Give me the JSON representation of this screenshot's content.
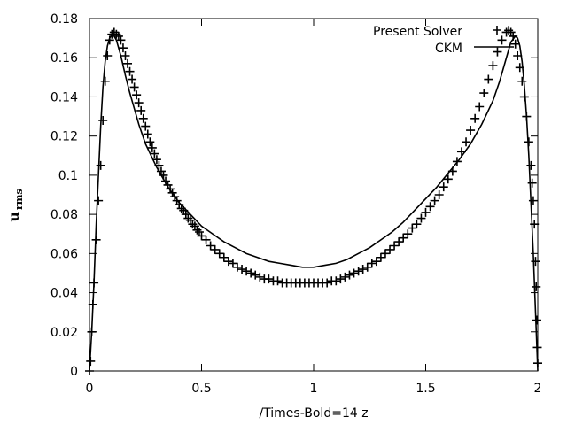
{
  "chart_data": {
    "type": "line",
    "title": "",
    "xlabel": "/Times-Bold=14 z",
    "ylabel": "u",
    "ylabel_sub": "rms",
    "xlim": [
      0,
      2
    ],
    "ylim": [
      0,
      0.18
    ],
    "x_ticks": [
      "0",
      "0.5",
      "1",
      "1.5",
      "2"
    ],
    "y_ticks": [
      "0",
      "0.02",
      "0.04",
      "0.06",
      "0.08",
      "0.1",
      "0.12",
      "0.14",
      "0.16",
      "0.18"
    ],
    "legend_position": "top-right",
    "grid": false,
    "series": [
      {
        "name": "Present Solver",
        "style": "markers-plus",
        "color": "#000000",
        "points": [
          [
            0.0,
            0.0
          ],
          [
            0.005,
            0.005
          ],
          [
            0.01,
            0.02
          ],
          [
            0.015,
            0.034
          ],
          [
            0.02,
            0.045
          ],
          [
            0.03,
            0.067
          ],
          [
            0.04,
            0.087
          ],
          [
            0.05,
            0.105
          ],
          [
            0.06,
            0.128
          ],
          [
            0.07,
            0.148
          ],
          [
            0.08,
            0.161
          ],
          [
            0.09,
            0.169
          ],
          [
            0.1,
            0.172
          ],
          [
            0.11,
            0.173
          ],
          [
            0.12,
            0.172
          ],
          [
            0.13,
            0.171
          ],
          [
            0.14,
            0.169
          ],
          [
            0.15,
            0.165
          ],
          [
            0.16,
            0.161
          ],
          [
            0.17,
            0.157
          ],
          [
            0.18,
            0.153
          ],
          [
            0.19,
            0.149
          ],
          [
            0.2,
            0.145
          ],
          [
            0.21,
            0.141
          ],
          [
            0.22,
            0.137
          ],
          [
            0.23,
            0.133
          ],
          [
            0.24,
            0.129
          ],
          [
            0.25,
            0.125
          ],
          [
            0.26,
            0.121
          ],
          [
            0.27,
            0.117
          ],
          [
            0.28,
            0.114
          ],
          [
            0.29,
            0.111
          ],
          [
            0.3,
            0.108
          ],
          [
            0.31,
            0.105
          ],
          [
            0.32,
            0.102
          ],
          [
            0.33,
            0.1
          ],
          [
            0.34,
            0.097
          ],
          [
            0.35,
            0.095
          ],
          [
            0.36,
            0.093
          ],
          [
            0.37,
            0.091
          ],
          [
            0.38,
            0.089
          ],
          [
            0.39,
            0.087
          ],
          [
            0.4,
            0.085
          ],
          [
            0.41,
            0.083
          ],
          [
            0.42,
            0.082
          ],
          [
            0.43,
            0.08
          ],
          [
            0.44,
            0.078
          ],
          [
            0.45,
            0.077
          ],
          [
            0.46,
            0.075
          ],
          [
            0.47,
            0.074
          ],
          [
            0.48,
            0.072
          ],
          [
            0.49,
            0.071
          ],
          [
            0.5,
            0.069
          ],
          [
            0.52,
            0.067
          ],
          [
            0.54,
            0.064
          ],
          [
            0.56,
            0.062
          ],
          [
            0.58,
            0.06
          ],
          [
            0.6,
            0.058
          ],
          [
            0.62,
            0.056
          ],
          [
            0.64,
            0.055
          ],
          [
            0.66,
            0.053
          ],
          [
            0.68,
            0.052
          ],
          [
            0.7,
            0.051
          ],
          [
            0.72,
            0.05
          ],
          [
            0.74,
            0.049
          ],
          [
            0.76,
            0.048
          ],
          [
            0.78,
            0.047
          ],
          [
            0.8,
            0.047
          ],
          [
            0.82,
            0.046
          ],
          [
            0.84,
            0.046
          ],
          [
            0.86,
            0.045
          ],
          [
            0.88,
            0.045
          ],
          [
            0.9,
            0.045
          ],
          [
            0.92,
            0.045
          ],
          [
            0.94,
            0.045
          ],
          [
            0.96,
            0.045
          ],
          [
            0.98,
            0.045
          ],
          [
            1.0,
            0.045
          ],
          [
            1.02,
            0.045
          ],
          [
            1.04,
            0.045
          ],
          [
            1.06,
            0.045
          ],
          [
            1.08,
            0.046
          ],
          [
            1.1,
            0.046
          ],
          [
            1.12,
            0.047
          ],
          [
            1.14,
            0.048
          ],
          [
            1.16,
            0.049
          ],
          [
            1.18,
            0.05
          ],
          [
            1.2,
            0.051
          ],
          [
            1.22,
            0.052
          ],
          [
            1.24,
            0.053
          ],
          [
            1.26,
            0.055
          ],
          [
            1.28,
            0.056
          ],
          [
            1.3,
            0.058
          ],
          [
            1.32,
            0.06
          ],
          [
            1.34,
            0.062
          ],
          [
            1.36,
            0.064
          ],
          [
            1.38,
            0.066
          ],
          [
            1.4,
            0.068
          ],
          [
            1.42,
            0.07
          ],
          [
            1.44,
            0.073
          ],
          [
            1.46,
            0.075
          ],
          [
            1.48,
            0.078
          ],
          [
            1.5,
            0.081
          ],
          [
            1.52,
            0.084
          ],
          [
            1.54,
            0.087
          ],
          [
            1.56,
            0.09
          ],
          [
            1.58,
            0.094
          ],
          [
            1.6,
            0.098
          ],
          [
            1.62,
            0.102
          ],
          [
            1.64,
            0.107
          ],
          [
            1.66,
            0.112
          ],
          [
            1.68,
            0.117
          ],
          [
            1.7,
            0.123
          ],
          [
            1.72,
            0.129
          ],
          [
            1.74,
            0.135
          ],
          [
            1.76,
            0.142
          ],
          [
            1.78,
            0.149
          ],
          [
            1.8,
            0.156
          ],
          [
            1.82,
            0.163
          ],
          [
            1.84,
            0.169
          ],
          [
            1.86,
            0.173
          ],
          [
            1.87,
            0.174
          ],
          [
            1.88,
            0.173
          ],
          [
            1.89,
            0.171
          ],
          [
            1.9,
            0.167
          ],
          [
            1.91,
            0.161
          ],
          [
            1.92,
            0.155
          ],
          [
            1.93,
            0.148
          ],
          [
            1.94,
            0.14
          ],
          [
            1.95,
            0.13
          ],
          [
            1.96,
            0.117
          ],
          [
            1.97,
            0.105
          ],
          [
            1.975,
            0.096
          ],
          [
            1.98,
            0.087
          ],
          [
            1.985,
            0.075
          ],
          [
            1.99,
            0.056
          ],
          [
            1.993,
            0.043
          ],
          [
            1.996,
            0.026
          ],
          [
            1.998,
            0.012
          ],
          [
            2.0,
            0.004
          ]
        ]
      },
      {
        "name": "CKM",
        "style": "line",
        "color": "#000000",
        "points": [
          [
            0.0,
            0.0
          ],
          [
            0.01,
            0.02
          ],
          [
            0.02,
            0.045
          ],
          [
            0.03,
            0.075
          ],
          [
            0.04,
            0.1
          ],
          [
            0.05,
            0.125
          ],
          [
            0.06,
            0.145
          ],
          [
            0.07,
            0.158
          ],
          [
            0.08,
            0.166
          ],
          [
            0.09,
            0.17
          ],
          [
            0.1,
            0.172
          ],
          [
            0.11,
            0.171
          ],
          [
            0.12,
            0.169
          ],
          [
            0.14,
            0.161
          ],
          [
            0.16,
            0.151
          ],
          [
            0.18,
            0.142
          ],
          [
            0.2,
            0.134
          ],
          [
            0.22,
            0.126
          ],
          [
            0.25,
            0.116
          ],
          [
            0.3,
            0.104
          ],
          [
            0.35,
            0.094
          ],
          [
            0.4,
            0.086
          ],
          [
            0.45,
            0.08
          ],
          [
            0.5,
            0.074
          ],
          [
            0.55,
            0.07
          ],
          [
            0.6,
            0.066
          ],
          [
            0.65,
            0.063
          ],
          [
            0.7,
            0.06
          ],
          [
            0.75,
            0.058
          ],
          [
            0.8,
            0.056
          ],
          [
            0.85,
            0.055
          ],
          [
            0.9,
            0.054
          ],
          [
            0.95,
            0.053
          ],
          [
            1.0,
            0.053
          ],
          [
            1.05,
            0.054
          ],
          [
            1.1,
            0.055
          ],
          [
            1.15,
            0.057
          ],
          [
            1.2,
            0.06
          ],
          [
            1.25,
            0.063
          ],
          [
            1.3,
            0.067
          ],
          [
            1.35,
            0.071
          ],
          [
            1.4,
            0.076
          ],
          [
            1.45,
            0.082
          ],
          [
            1.5,
            0.088
          ],
          [
            1.55,
            0.094
          ],
          [
            1.6,
            0.101
          ],
          [
            1.65,
            0.108
          ],
          [
            1.7,
            0.116
          ],
          [
            1.75,
            0.126
          ],
          [
            1.8,
            0.138
          ],
          [
            1.83,
            0.148
          ],
          [
            1.86,
            0.16
          ],
          [
            1.88,
            0.168
          ],
          [
            1.9,
            0.171
          ],
          [
            1.91,
            0.17
          ],
          [
            1.92,
            0.166
          ],
          [
            1.93,
            0.158
          ],
          [
            1.94,
            0.146
          ],
          [
            1.95,
            0.13
          ],
          [
            1.96,
            0.11
          ],
          [
            1.97,
            0.085
          ],
          [
            1.98,
            0.06
          ],
          [
            1.99,
            0.03
          ],
          [
            2.0,
            0.0
          ]
        ]
      }
    ]
  }
}
